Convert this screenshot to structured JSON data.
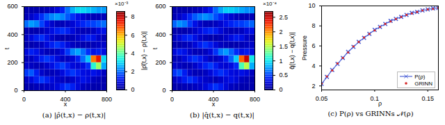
{
  "chart_data": [
    {
      "type": "heatmap",
      "caption": "(a) |ρ̂(t,x) − ρ(t,x)|",
      "x_label": "x",
      "y_label": "t",
      "xlim": [
        0,
        800
      ],
      "ylim": [
        0,
        600
      ],
      "xticks": [
        0,
        400,
        800
      ],
      "yticks": [
        0,
        200,
        400,
        600
      ],
      "x_edges": [
        0,
        50,
        100,
        150,
        200,
        250,
        300,
        350,
        400,
        450,
        500,
        550,
        600,
        650,
        700,
        750,
        800
      ],
      "t_edges": [
        0,
        50,
        100,
        150,
        200,
        250,
        300,
        350,
        400,
        450,
        500,
        550,
        600
      ],
      "cells": [
        [
          0.3,
          0.3,
          0.4,
          0.4,
          0.5,
          0.6,
          0.8,
          1.2,
          1.5,
          1.2,
          0.8,
          0.5,
          0.4,
          0.3,
          0.3,
          0.3
        ],
        [
          0.5,
          0.8,
          1.2,
          1.5,
          1.2,
          0.8,
          0.6,
          0.5,
          0.4,
          0.6,
          0.8,
          1.0,
          0.8,
          0.5,
          0.4,
          0.3
        ],
        [
          1.5,
          1.8,
          1.2,
          0.6,
          0.4,
          0.4,
          0.5,
          0.8,
          1.2,
          1.5,
          1.2,
          0.9,
          0.8,
          1.0,
          0.8,
          0.5
        ],
        [
          0.6,
          0.5,
          0.4,
          0.4,
          0.6,
          0.9,
          1.3,
          1.6,
          1.2,
          0.8,
          0.7,
          0.9,
          1.4,
          3.5,
          4.5,
          2.5
        ],
        [
          0.4,
          0.5,
          0.8,
          1.2,
          1.5,
          1.2,
          0.8,
          0.5,
          0.5,
          0.7,
          1.2,
          2.0,
          2.8,
          6.5,
          7.5,
          3.0
        ],
        [
          0.8,
          1.2,
          1.0,
          0.6,
          0.4,
          0.4,
          0.5,
          0.8,
          1.5,
          2.2,
          2.5,
          2.0,
          1.4,
          1.0,
          1.2,
          0.9
        ],
        [
          0.3,
          0.3,
          0.4,
          0.5,
          0.8,
          1.2,
          1.5,
          1.2,
          0.8,
          0.5,
          0.4,
          0.3,
          0.3,
          0.4,
          0.5,
          0.6
        ],
        [
          0.5,
          0.8,
          1.2,
          1.4,
          1.0,
          0.6,
          0.4,
          0.3,
          0.3,
          0.4,
          0.6,
          0.9,
          1.2,
          1.0,
          0.6,
          0.4
        ],
        [
          0.3,
          0.3,
          0.3,
          0.4,
          0.6,
          0.9,
          1.2,
          1.4,
          1.2,
          0.8,
          0.5,
          0.4,
          0.4,
          0.5,
          0.8,
          1.0
        ],
        [
          2.0,
          2.4,
          2.2,
          1.6,
          1.0,
          0.6,
          0.4,
          0.4,
          0.5,
          0.7,
          1.0,
          1.3,
          1.5,
          1.6,
          1.8,
          2.0
        ],
        [
          0.4,
          0.6,
          0.9,
          1.4,
          1.9,
          2.2,
          2.4,
          2.2,
          1.8,
          1.4,
          1.0,
          0.7,
          0.5,
          0.4,
          0.4,
          0.4
        ],
        [
          0.3,
          0.3,
          0.3,
          0.3,
          0.4,
          0.5,
          0.8,
          1.2,
          2.0,
          2.6,
          3.0,
          3.0,
          2.8,
          2.6,
          2.4,
          2.4
        ]
      ],
      "colorbar": {
        "label": "|ρ̂(t,x) − ρ(t,x)|",
        "multiplier": "×10⁻³",
        "range": [
          0,
          8.6
        ],
        "ticks": [
          0,
          2,
          4,
          6,
          8
        ]
      }
    },
    {
      "type": "heatmap",
      "caption": "(b) |q̂(t,x) − q(t,x)|",
      "x_label": "x",
      "y_label": "t",
      "xlim": [
        0,
        800
      ],
      "ylim": [
        0,
        600
      ],
      "xticks": [
        0,
        400,
        800
      ],
      "yticks": [
        0,
        200,
        400,
        600
      ],
      "x_edges": [
        0,
        50,
        100,
        150,
        200,
        250,
        300,
        350,
        400,
        450,
        500,
        550,
        600,
        650,
        700,
        750,
        800
      ],
      "t_edges": [
        0,
        50,
        100,
        150,
        200,
        250,
        300,
        350,
        400,
        450,
        500,
        550,
        600
      ],
      "cells": [
        [
          0.09,
          0.09,
          0.12,
          0.12,
          0.15,
          0.18,
          0.24,
          0.36,
          0.45,
          0.36,
          0.24,
          0.15,
          0.12,
          0.09,
          0.09,
          0.09
        ],
        [
          0.15,
          0.24,
          0.36,
          0.45,
          0.36,
          0.24,
          0.18,
          0.15,
          0.12,
          0.18,
          0.24,
          0.3,
          0.24,
          0.15,
          0.12,
          0.09
        ],
        [
          0.45,
          0.54,
          0.36,
          0.18,
          0.12,
          0.12,
          0.15,
          0.24,
          0.36,
          0.45,
          0.36,
          0.27,
          0.24,
          0.3,
          0.24,
          0.15
        ],
        [
          0.18,
          0.15,
          0.12,
          0.12,
          0.18,
          0.27,
          0.39,
          0.48,
          0.36,
          0.24,
          0.21,
          0.27,
          0.42,
          1.2,
          1.5,
          0.8
        ],
        [
          0.12,
          0.15,
          0.24,
          0.36,
          0.45,
          0.36,
          0.24,
          0.15,
          0.15,
          0.21,
          0.36,
          0.6,
          0.9,
          2.1,
          2.5,
          1.0
        ],
        [
          0.24,
          0.36,
          0.3,
          0.18,
          0.12,
          0.12,
          0.15,
          0.24,
          0.45,
          0.66,
          0.75,
          0.6,
          0.42,
          0.3,
          0.36,
          0.27
        ],
        [
          0.09,
          0.09,
          0.12,
          0.15,
          0.24,
          0.36,
          0.45,
          0.36,
          0.24,
          0.15,
          0.12,
          0.09,
          0.09,
          0.12,
          0.15,
          0.18
        ],
        [
          0.15,
          0.24,
          0.36,
          0.42,
          0.3,
          0.18,
          0.12,
          0.09,
          0.09,
          0.12,
          0.18,
          0.27,
          0.36,
          0.3,
          0.18,
          0.12
        ],
        [
          0.09,
          0.09,
          0.09,
          0.12,
          0.18,
          0.27,
          0.36,
          0.42,
          0.36,
          0.24,
          0.15,
          0.12,
          0.12,
          0.15,
          0.24,
          0.3
        ],
        [
          0.6,
          0.72,
          0.66,
          0.48,
          0.3,
          0.18,
          0.12,
          0.12,
          0.15,
          0.21,
          0.3,
          0.39,
          0.45,
          0.48,
          0.54,
          0.6
        ],
        [
          0.12,
          0.18,
          0.27,
          0.42,
          0.57,
          0.66,
          0.72,
          0.66,
          0.54,
          0.42,
          0.3,
          0.21,
          0.15,
          0.12,
          0.12,
          0.12
        ],
        [
          0.09,
          0.09,
          0.09,
          0.09,
          0.12,
          0.15,
          0.24,
          0.36,
          0.6,
          0.78,
          0.9,
          0.9,
          0.84,
          0.78,
          0.72,
          0.72
        ]
      ],
      "colorbar": {
        "label": "q̂(t,x) − q(t,x)|",
        "multiplier": "×10⁻⁴",
        "range": [
          0,
          2.7
        ],
        "ticks": [
          0,
          0.5,
          1,
          1.5,
          2,
          2.5
        ]
      }
    },
    {
      "type": "line",
      "caption": "(c) P(ρ) vs GRINNs 𝒩(ρ)",
      "x_label": "ρ",
      "y_label": "Pressure",
      "xlim": [
        0.05,
        0.16
      ],
      "ylim": [
        1.6,
        10
      ],
      "xticks": [
        0.05,
        0.1,
        0.15
      ],
      "yticks": [
        2,
        4,
        6,
        8,
        10
      ],
      "legend": "bottom-right",
      "x": [
        0.05,
        0.055,
        0.06,
        0.065,
        0.07,
        0.075,
        0.08,
        0.085,
        0.09,
        0.095,
        0.1,
        0.105,
        0.11,
        0.115,
        0.12,
        0.125,
        0.13,
        0.135,
        0.14,
        0.145,
        0.15,
        0.155,
        0.16
      ],
      "series": [
        {
          "name": "P(ρ)",
          "color": "#4a5fd6",
          "line_style": "solid",
          "marker": "x",
          "values": [
            2.2,
            2.9,
            3.6,
            4.2,
            4.8,
            5.4,
            5.9,
            6.4,
            6.8,
            7.2,
            7.6,
            7.9,
            8.2,
            8.5,
            8.7,
            8.9,
            9.1,
            9.3,
            9.4,
            9.55,
            9.65,
            9.75,
            9.8
          ]
        },
        {
          "name": "GRINN",
          "color": "#d62728",
          "marker": "dot",
          "values": [
            2.25,
            2.95,
            3.55,
            4.25,
            4.8,
            5.35,
            5.95,
            6.4,
            6.85,
            7.2,
            7.55,
            7.9,
            8.2,
            8.45,
            8.7,
            8.9,
            9.1,
            9.25,
            9.4,
            9.55,
            9.65,
            9.7,
            9.8
          ]
        }
      ]
    }
  ]
}
